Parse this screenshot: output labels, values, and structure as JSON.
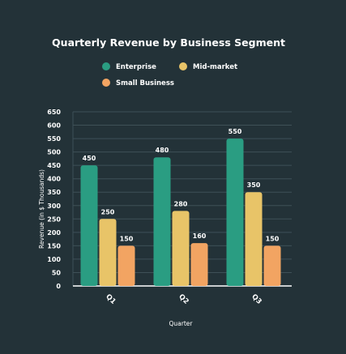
{
  "chart_data": {
    "type": "bar",
    "title": "Quarterly Revenue by Business Segment",
    "xlabel": "Quarter",
    "ylabel": "Revenue (in $ Thousands)",
    "categories": [
      "Q1",
      "Q2",
      "Q3"
    ],
    "ylim": [
      0,
      650
    ],
    "yticks": [
      0,
      50,
      100,
      150,
      200,
      250,
      300,
      350,
      400,
      450,
      500,
      550,
      600,
      650
    ],
    "grid": true,
    "legend_position": "top",
    "series": [
      {
        "name": "Enterprise",
        "values": [
          450,
          480,
          550
        ],
        "color": "#2a9d82"
      },
      {
        "name": "Mid-market",
        "values": [
          250,
          280,
          350
        ],
        "color": "#e8c468"
      },
      {
        "name": "Small Business",
        "values": [
          150,
          160,
          150
        ],
        "color": "#f2a462"
      }
    ],
    "colors": {
      "background": "#233238",
      "grid": "#3e5057",
      "text": "#ffffff",
      "axis": "#ffffff"
    }
  }
}
